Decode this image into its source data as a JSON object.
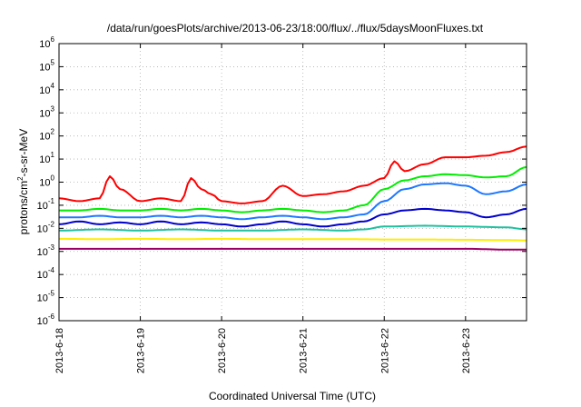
{
  "chart_data": {
    "type": "line",
    "title": "/data/run/goesPlots/archive/2013-06-23/18:00/flux/../flux/5daysMoonFluxes.txt",
    "xlabel": "Coordinated Universal Time (UTC)",
    "ylabel_prefix": "protons/cm",
    "ylabel_sup": "2",
    "ylabel_suffix": "-s-sr-MeV",
    "y_scale": "log",
    "ylim": [
      1e-06,
      1000000.0
    ],
    "y_ticks": [
      {
        "base": "10",
        "exp": "6"
      },
      {
        "base": "10",
        "exp": "5"
      },
      {
        "base": "10",
        "exp": "4"
      },
      {
        "base": "10",
        "exp": "3"
      },
      {
        "base": "10",
        "exp": "2"
      },
      {
        "base": "10",
        "exp": "1"
      },
      {
        "base": "10",
        "exp": "0"
      },
      {
        "base": "10",
        "exp": "-1"
      },
      {
        "base": "10",
        "exp": "-2"
      },
      {
        "base": "10",
        "exp": "-3"
      },
      {
        "base": "10",
        "exp": "-4"
      },
      {
        "base": "10",
        "exp": "-5"
      },
      {
        "base": "10",
        "exp": "-6"
      }
    ],
    "x_tick_labels": [
      "2013-6-18",
      "2013-6-19",
      "2013-6-20",
      "2013-6-21",
      "2013-6-22",
      "2013-6-23"
    ],
    "xlim": [
      "2013-06-18 00:00",
      "2013-06-23 18:00"
    ],
    "grid": true,
    "legend": "none",
    "series": [
      {
        "color": "#ff0000",
        "x": [
          "2013-06-18 00:00",
          "2013-06-18 06:00",
          "2013-06-18 12:00",
          "2013-06-18 15:00",
          "2013-06-18 18:00",
          "2013-06-19 00:00",
          "2013-06-19 06:00",
          "2013-06-19 12:00",
          "2013-06-19 15:00",
          "2013-06-19 18:00",
          "2013-06-19 21:00",
          "2013-06-20 00:00",
          "2013-06-20 06:00",
          "2013-06-20 12:00",
          "2013-06-20 18:00",
          "2013-06-21 00:00",
          "2013-06-21 06:00",
          "2013-06-21 12:00",
          "2013-06-21 18:00",
          "2013-06-22 00:00",
          "2013-06-22 03:00",
          "2013-06-22 06:00",
          "2013-06-22 12:00",
          "2013-06-22 18:00",
          "2013-06-23 00:00",
          "2013-06-23 06:00",
          "2013-06-23 12:00",
          "2013-06-23 18:00"
        ],
        "y": [
          0.2,
          0.15,
          0.2,
          1.8,
          0.5,
          0.15,
          0.2,
          0.15,
          1.5,
          0.5,
          0.3,
          0.15,
          0.12,
          0.15,
          0.7,
          0.25,
          0.3,
          0.4,
          0.7,
          1.5,
          8,
          3,
          6,
          12,
          12,
          14,
          20,
          35
        ]
      },
      {
        "color": "#00ee00",
        "x": [
          "2013-06-18 00:00",
          "2013-06-18 06:00",
          "2013-06-18 12:00",
          "2013-06-18 18:00",
          "2013-06-19 00:00",
          "2013-06-19 06:00",
          "2013-06-19 12:00",
          "2013-06-19 18:00",
          "2013-06-20 00:00",
          "2013-06-20 06:00",
          "2013-06-20 12:00",
          "2013-06-20 18:00",
          "2013-06-21 00:00",
          "2013-06-21 06:00",
          "2013-06-21 12:00",
          "2013-06-21 18:00",
          "2013-06-22 00:00",
          "2013-06-22 06:00",
          "2013-06-22 12:00",
          "2013-06-22 18:00",
          "2013-06-23 00:00",
          "2013-06-23 06:00",
          "2013-06-23 12:00",
          "2013-06-23 18:00"
        ],
        "y": [
          0.06,
          0.06,
          0.07,
          0.06,
          0.06,
          0.07,
          0.06,
          0.07,
          0.06,
          0.05,
          0.06,
          0.07,
          0.06,
          0.05,
          0.06,
          0.1,
          0.5,
          1.2,
          1.8,
          2.2,
          2.0,
          1.6,
          1.8,
          4.5
        ]
      },
      {
        "color": "#1e78ff",
        "x": [
          "2013-06-18 00:00",
          "2013-06-18 06:00",
          "2013-06-18 12:00",
          "2013-06-18 18:00",
          "2013-06-19 00:00",
          "2013-06-19 06:00",
          "2013-06-19 12:00",
          "2013-06-19 18:00",
          "2013-06-20 00:00",
          "2013-06-20 06:00",
          "2013-06-20 12:00",
          "2013-06-20 18:00",
          "2013-06-21 00:00",
          "2013-06-21 06:00",
          "2013-06-21 12:00",
          "2013-06-21 18:00",
          "2013-06-22 00:00",
          "2013-06-22 06:00",
          "2013-06-22 12:00",
          "2013-06-22 18:00",
          "2013-06-23 00:00",
          "2013-06-23 06:00",
          "2013-06-23 12:00",
          "2013-06-23 18:00"
        ],
        "y": [
          0.03,
          0.03,
          0.035,
          0.03,
          0.03,
          0.035,
          0.03,
          0.035,
          0.03,
          0.025,
          0.03,
          0.035,
          0.03,
          0.025,
          0.03,
          0.04,
          0.15,
          0.5,
          0.8,
          0.9,
          0.7,
          0.3,
          0.4,
          0.8
        ]
      },
      {
        "color": "#0000cc",
        "x": [
          "2013-06-18 00:00",
          "2013-06-18 06:00",
          "2013-06-18 12:00",
          "2013-06-18 18:00",
          "2013-06-19 00:00",
          "2013-06-19 06:00",
          "2013-06-19 12:00",
          "2013-06-19 18:00",
          "2013-06-20 00:00",
          "2013-06-20 06:00",
          "2013-06-20 12:00",
          "2013-06-20 18:00",
          "2013-06-21 00:00",
          "2013-06-21 06:00",
          "2013-06-21 12:00",
          "2013-06-21 18:00",
          "2013-06-22 00:00",
          "2013-06-22 06:00",
          "2013-06-22 12:00",
          "2013-06-22 18:00",
          "2013-06-23 00:00",
          "2013-06-23 06:00",
          "2013-06-23 12:00",
          "2013-06-23 18:00"
        ],
        "y": [
          0.015,
          0.02,
          0.015,
          0.018,
          0.015,
          0.02,
          0.015,
          0.018,
          0.015,
          0.012,
          0.015,
          0.02,
          0.015,
          0.012,
          0.015,
          0.02,
          0.04,
          0.06,
          0.07,
          0.06,
          0.05,
          0.03,
          0.04,
          0.07
        ]
      },
      {
        "color": "#20c0a0",
        "x": [
          "2013-06-18 00:00",
          "2013-06-18 12:00",
          "2013-06-19 00:00",
          "2013-06-19 12:00",
          "2013-06-20 00:00",
          "2013-06-20 12:00",
          "2013-06-21 00:00",
          "2013-06-21 12:00",
          "2013-06-21 18:00",
          "2013-06-22 00:00",
          "2013-06-22 12:00",
          "2013-06-23 00:00",
          "2013-06-23 12:00",
          "2013-06-23 18:00"
        ],
        "y": [
          0.008,
          0.009,
          0.008,
          0.009,
          0.008,
          0.008,
          0.009,
          0.008,
          0.009,
          0.012,
          0.013,
          0.012,
          0.011,
          0.009
        ]
      },
      {
        "color": "#ffee00",
        "x": [
          "2013-06-18 00:00",
          "2013-06-18 12:00",
          "2013-06-19 00:00",
          "2013-06-19 12:00",
          "2013-06-20 00:00",
          "2013-06-20 12:00",
          "2013-06-21 00:00",
          "2013-06-21 12:00",
          "2013-06-22 00:00",
          "2013-06-22 12:00",
          "2013-06-23 00:00",
          "2013-06-23 12:00",
          "2013-06-23 18:00"
        ],
        "y": [
          0.0035,
          0.0034,
          0.0035,
          0.0034,
          0.0035,
          0.0034,
          0.0034,
          0.0034,
          0.0033,
          0.0033,
          0.0032,
          0.0031,
          0.003
        ]
      },
      {
        "color": "#990066",
        "x": [
          "2013-06-18 00:00",
          "2013-06-18 12:00",
          "2013-06-19 00:00",
          "2013-06-19 12:00",
          "2013-06-20 00:00",
          "2013-06-20 12:00",
          "2013-06-21 00:00",
          "2013-06-21 12:00",
          "2013-06-22 00:00",
          "2013-06-22 12:00",
          "2013-06-23 00:00",
          "2013-06-23 12:00",
          "2013-06-23 18:00"
        ],
        "y": [
          0.0013,
          0.0013,
          0.0013,
          0.0013,
          0.0013,
          0.0013,
          0.0013,
          0.0013,
          0.0013,
          0.0013,
          0.0013,
          0.0012,
          0.0012
        ]
      }
    ]
  }
}
